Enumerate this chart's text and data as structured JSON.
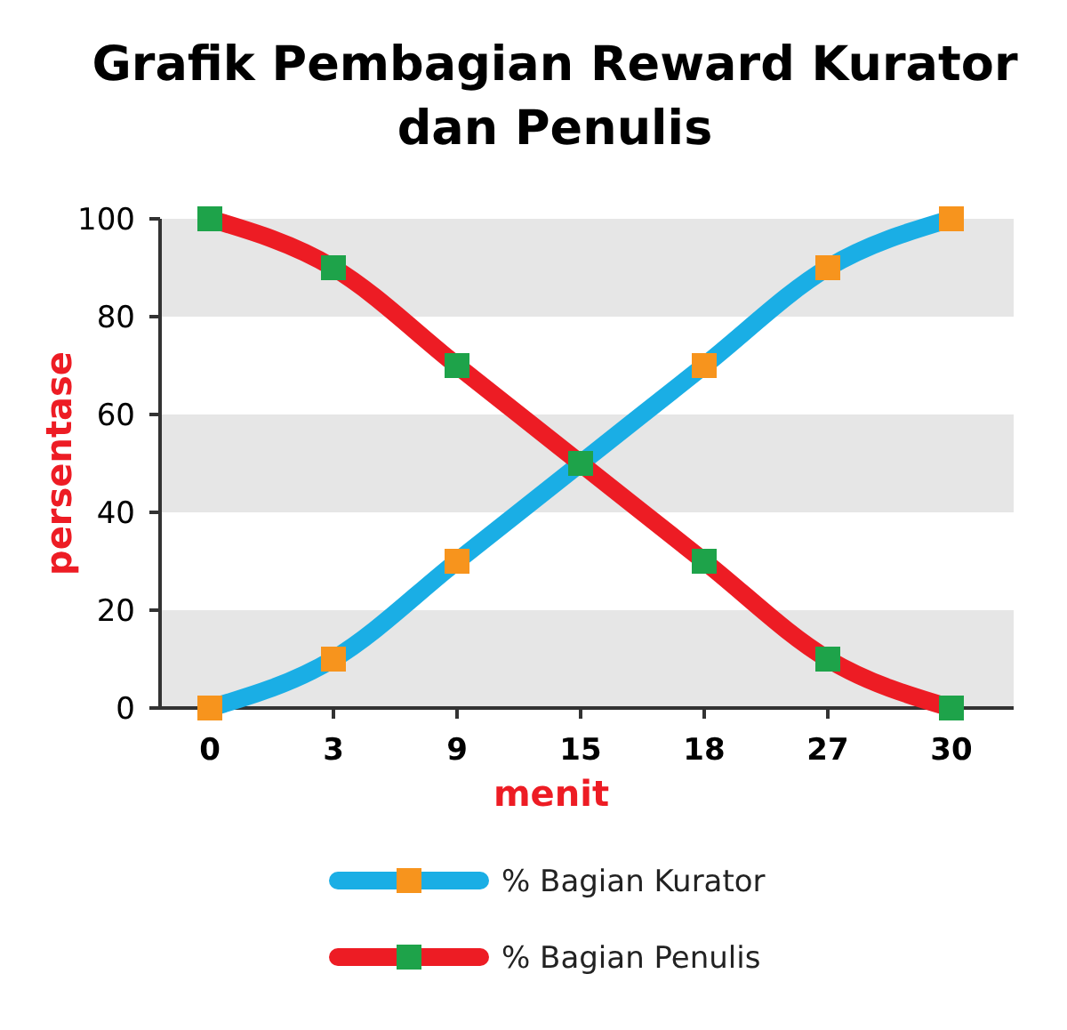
{
  "chart_data": {
    "type": "line",
    "title": "Grafik Pembagian Reward Kurator dan Penulis",
    "xlabel": "menit",
    "ylabel": "persentase",
    "categories": [
      "0",
      "3",
      "9",
      "15",
      "18",
      "27",
      "30"
    ],
    "series": [
      {
        "name": "% Bagian Kurator",
        "color": "#1aaee5",
        "colors": [
          "#f7941d",
          "#f7941d",
          "#f7941d",
          "#f7941d",
          "#f7941d",
          "#f7941d",
          "#f7941d"
        ],
        "values": [
          0,
          10,
          30,
          50,
          70,
          90,
          100
        ]
      },
      {
        "name": "% Bagian Penulis",
        "color": "#ed1c24",
        "colors": [
          "#1ea34a",
          "#1ea34a",
          "#1ea34a",
          "#1ea34a",
          "#1ea34a",
          "#1ea34a",
          "#1ea34a"
        ],
        "values": [
          100,
          90,
          70,
          50,
          30,
          10,
          0
        ]
      }
    ],
    "ylim": [
      0,
      100
    ],
    "yticks": [
      0,
      20,
      40,
      60,
      80,
      100
    ],
    "bands": [
      {
        "axis": "y",
        "from": 0,
        "to": 20,
        "color": "#e6e6e6"
      },
      {
        "axis": "y",
        "from": 40,
        "to": 60,
        "color": "#e6e6e6"
      },
      {
        "axis": "y",
        "from": 80,
        "to": 100,
        "color": "#e6e6e6"
      }
    ],
    "marker": "square",
    "legend": "bottom",
    "grid": false
  }
}
